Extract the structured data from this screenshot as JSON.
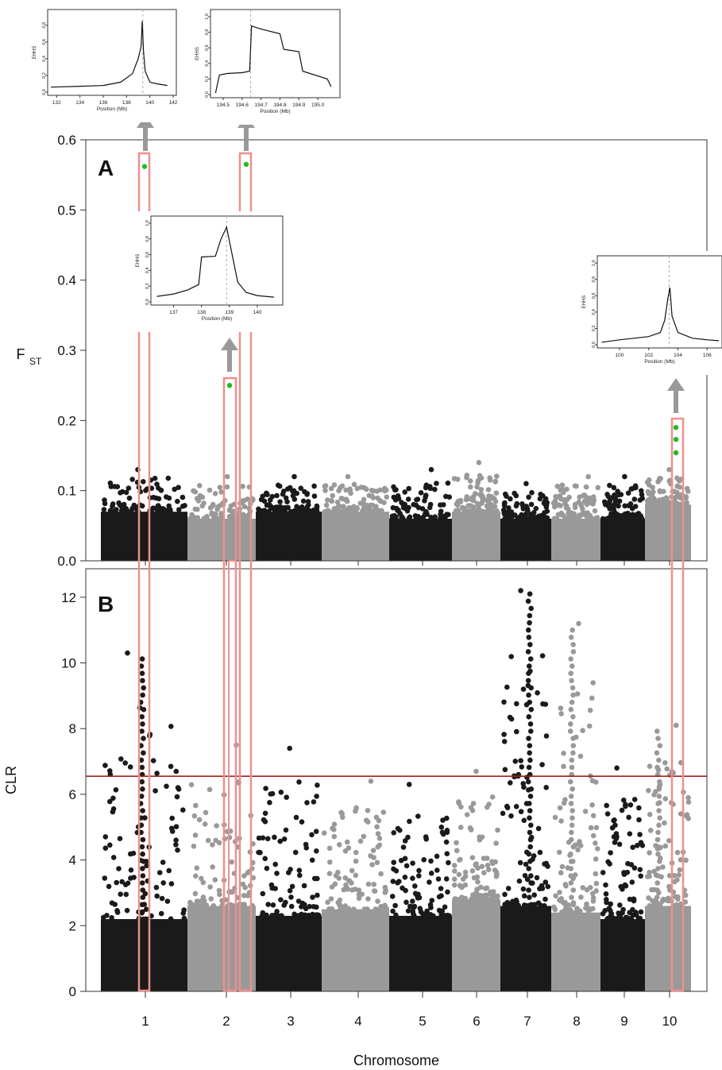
{
  "chart_data": [
    {
      "type": "scatter",
      "panel_label": "A",
      "ylabel": "F",
      "ylabel_sub": "ST",
      "ylim": [
        0,
        0.6
      ],
      "yticks": [
        0.0,
        0.1,
        0.2,
        0.3,
        0.4,
        0.5,
        0.6
      ],
      "ytick_labels": [
        "0.0",
        "0.1",
        "0.2",
        "0.3",
        "0.4",
        "0.5",
        "0.6"
      ],
      "series": [
        {
          "chromosome": 1,
          "colour": "#1a1a1a",
          "typical_max": 0.07,
          "peak": 0.13
        },
        {
          "chromosome": 2,
          "colour": "#999999",
          "typical_max": 0.06,
          "peak": 0.12
        },
        {
          "chromosome": 3,
          "colour": "#1a1a1a",
          "typical_max": 0.07,
          "peak": 0.12
        },
        {
          "chromosome": 4,
          "colour": "#999999",
          "typical_max": 0.07,
          "peak": 0.12
        },
        {
          "chromosome": 5,
          "colour": "#1a1a1a",
          "typical_max": 0.06,
          "peak": 0.13
        },
        {
          "chromosome": 6,
          "colour": "#999999",
          "typical_max": 0.07,
          "peak": 0.14
        },
        {
          "chromosome": 7,
          "colour": "#1a1a1a",
          "typical_max": 0.06,
          "peak": 0.11
        },
        {
          "chromosome": 8,
          "colour": "#999999",
          "typical_max": 0.06,
          "peak": 0.12
        },
        {
          "chromosome": 9,
          "colour": "#1a1a1a",
          "typical_max": 0.06,
          "peak": 0.12
        },
        {
          "chromosome": 10,
          "colour": "#999999",
          "typical_max": 0.08,
          "peak": 0.13
        }
      ],
      "highlighted_points": [
        {
          "chromosome": 1,
          "value": 0.562
        },
        {
          "chromosome": 2,
          "value": 0.25
        },
        {
          "chromosome": 2,
          "value": 0.565
        },
        {
          "chromosome": 10,
          "value": 0.19
        },
        {
          "chromosome": 10,
          "value": 0.173
        },
        {
          "chromosome": 10,
          "value": 0.154
        }
      ],
      "highlight_colour": "#22bb22"
    },
    {
      "type": "scatter",
      "panel_label": "B",
      "ylabel": "CLR",
      "ylim": [
        0,
        13
      ],
      "yticks": [
        0,
        2,
        4,
        6,
        8,
        10,
        12
      ],
      "ytick_labels": [
        "0",
        "2",
        "4",
        "6",
        "8",
        "10",
        "12"
      ],
      "threshold": 6.55,
      "threshold_colour": "#a02020",
      "xlabel": "Chromosome",
      "xticks": [
        1,
        2,
        3,
        4,
        5,
        6,
        7,
        8,
        9,
        10
      ],
      "xtick_labels": [
        "1",
        "2",
        "3",
        "4",
        "5",
        "6",
        "7",
        "8",
        "9",
        "10"
      ],
      "series": [
        {
          "chromosome": 1,
          "colour": "#1a1a1a",
          "typical_max": 2.2,
          "peak": 10.3
        },
        {
          "chromosome": 2,
          "colour": "#999999",
          "typical_max": 2.6,
          "peak": 7.5
        },
        {
          "chromosome": 3,
          "colour": "#1a1a1a",
          "typical_max": 2.3,
          "peak": 7.4
        },
        {
          "chromosome": 4,
          "colour": "#999999",
          "typical_max": 2.5,
          "peak": 6.4
        },
        {
          "chromosome": 5,
          "colour": "#1a1a1a",
          "typical_max": 2.3,
          "peak": 6.3
        },
        {
          "chromosome": 6,
          "colour": "#999999",
          "typical_max": 2.8,
          "peak": 6.7
        },
        {
          "chromosome": 7,
          "colour": "#1a1a1a",
          "typical_max": 2.6,
          "peak": 12.2
        },
        {
          "chromosome": 8,
          "colour": "#999999",
          "typical_max": 2.4,
          "peak": 11.2
        },
        {
          "chromosome": 9,
          "colour": "#1a1a1a",
          "typical_max": 2.2,
          "peak": 6.8
        },
        {
          "chromosome": 10,
          "colour": "#999999",
          "typical_max": 2.6,
          "peak": 8.1
        }
      ]
    }
  ],
  "insets": [
    {
      "ylabel": "EHHS",
      "xlabel": "Position (Mb)",
      "xlim": [
        131.5,
        142
      ],
      "xticks": [
        "132",
        "134",
        "136",
        "138",
        "140",
        "142"
      ],
      "xtick_values": [
        132,
        134,
        136,
        138,
        140,
        142
      ],
      "yticks": [
        "0.0",
        "0.2",
        "0.4",
        "0.6",
        "0.8"
      ],
      "ytick_values": [
        0,
        0.2,
        0.4,
        0.6,
        0.8
      ],
      "ylim": [
        0,
        0.95
      ],
      "core": 139.4,
      "curve_x": [
        131.5,
        134,
        136,
        137.5,
        138.5,
        139.0,
        139.25,
        139.35,
        139.45,
        139.6,
        140,
        140.6,
        141.5
      ],
      "curve_y": [
        0.06,
        0.07,
        0.08,
        0.12,
        0.22,
        0.4,
        0.55,
        0.85,
        0.5,
        0.25,
        0.12,
        0.1,
        0.08
      ]
    },
    {
      "ylabel": "EHHS",
      "xlabel": "Position (Mb)",
      "xlim": [
        194.45,
        195.1
      ],
      "xticks": [
        "194.5",
        "194.6",
        "194.7",
        "194.8",
        "194.9",
        "195.0"
      ],
      "xtick_values": [
        194.5,
        194.6,
        194.7,
        194.8,
        194.9,
        195.0
      ],
      "yticks": [
        "0.0",
        "0.2",
        "0.4",
        "0.6",
        "0.8",
        "1.0"
      ],
      "ytick_values": [
        0,
        0.2,
        0.4,
        0.6,
        0.8,
        1.0
      ],
      "ylim": [
        0,
        1.05
      ],
      "core": 194.645,
      "curve_x": [
        194.46,
        194.48,
        194.52,
        194.6,
        194.64,
        194.65,
        194.7,
        194.8,
        194.82,
        194.9,
        194.92,
        195.05,
        195.07
      ],
      "curve_y": [
        0.02,
        0.25,
        0.27,
        0.28,
        0.3,
        0.88,
        0.84,
        0.78,
        0.58,
        0.55,
        0.3,
        0.2,
        0.1
      ]
    },
    {
      "ylabel": "EHHS",
      "xlabel": "Position (Mb)",
      "xlim": [
        136.3,
        140.8
      ],
      "xticks": [
        "137",
        "138",
        "139",
        "140"
      ],
      "xtick_values": [
        137,
        138,
        139,
        140
      ],
      "yticks": [
        "0.0",
        "0.2",
        "0.4",
        "0.6",
        "0.8",
        "1.0"
      ],
      "ytick_values": [
        0,
        0.2,
        0.4,
        0.6,
        0.8,
        1.0
      ],
      "ylim": [
        0,
        1.05
      ],
      "core": 138.9,
      "curve_x": [
        136.4,
        137.0,
        137.5,
        137.9,
        138.0,
        138.5,
        138.7,
        138.9,
        139.1,
        139.3,
        139.6,
        140.0,
        140.6
      ],
      "curve_y": [
        0.07,
        0.1,
        0.15,
        0.22,
        0.57,
        0.58,
        0.8,
        0.95,
        0.6,
        0.25,
        0.12,
        0.08,
        0.06
      ]
    },
    {
      "ylabel": "EHHS",
      "xlabel": "Position (Mb)",
      "xlim": [
        98.7,
        106.8
      ],
      "xticks": [
        "100",
        "102",
        "104",
        "106"
      ],
      "xtick_values": [
        100,
        102,
        104,
        106
      ],
      "yticks": [
        "0.0",
        "0.2",
        "0.4",
        "0.6",
        "0.8",
        "1.0"
      ],
      "ytick_values": [
        0,
        0.2,
        0.4,
        0.6,
        0.8,
        1.0
      ],
      "ylim": [
        0,
        1.05
      ],
      "core": 103.4,
      "curve_x": [
        98.8,
        100,
        101,
        102,
        102.8,
        103.1,
        103.3,
        103.45,
        103.6,
        104,
        105,
        106,
        106.8
      ],
      "curve_y": [
        0.03,
        0.06,
        0.08,
        0.1,
        0.15,
        0.3,
        0.55,
        0.7,
        0.35,
        0.15,
        0.08,
        0.06,
        0.05
      ]
    }
  ]
}
